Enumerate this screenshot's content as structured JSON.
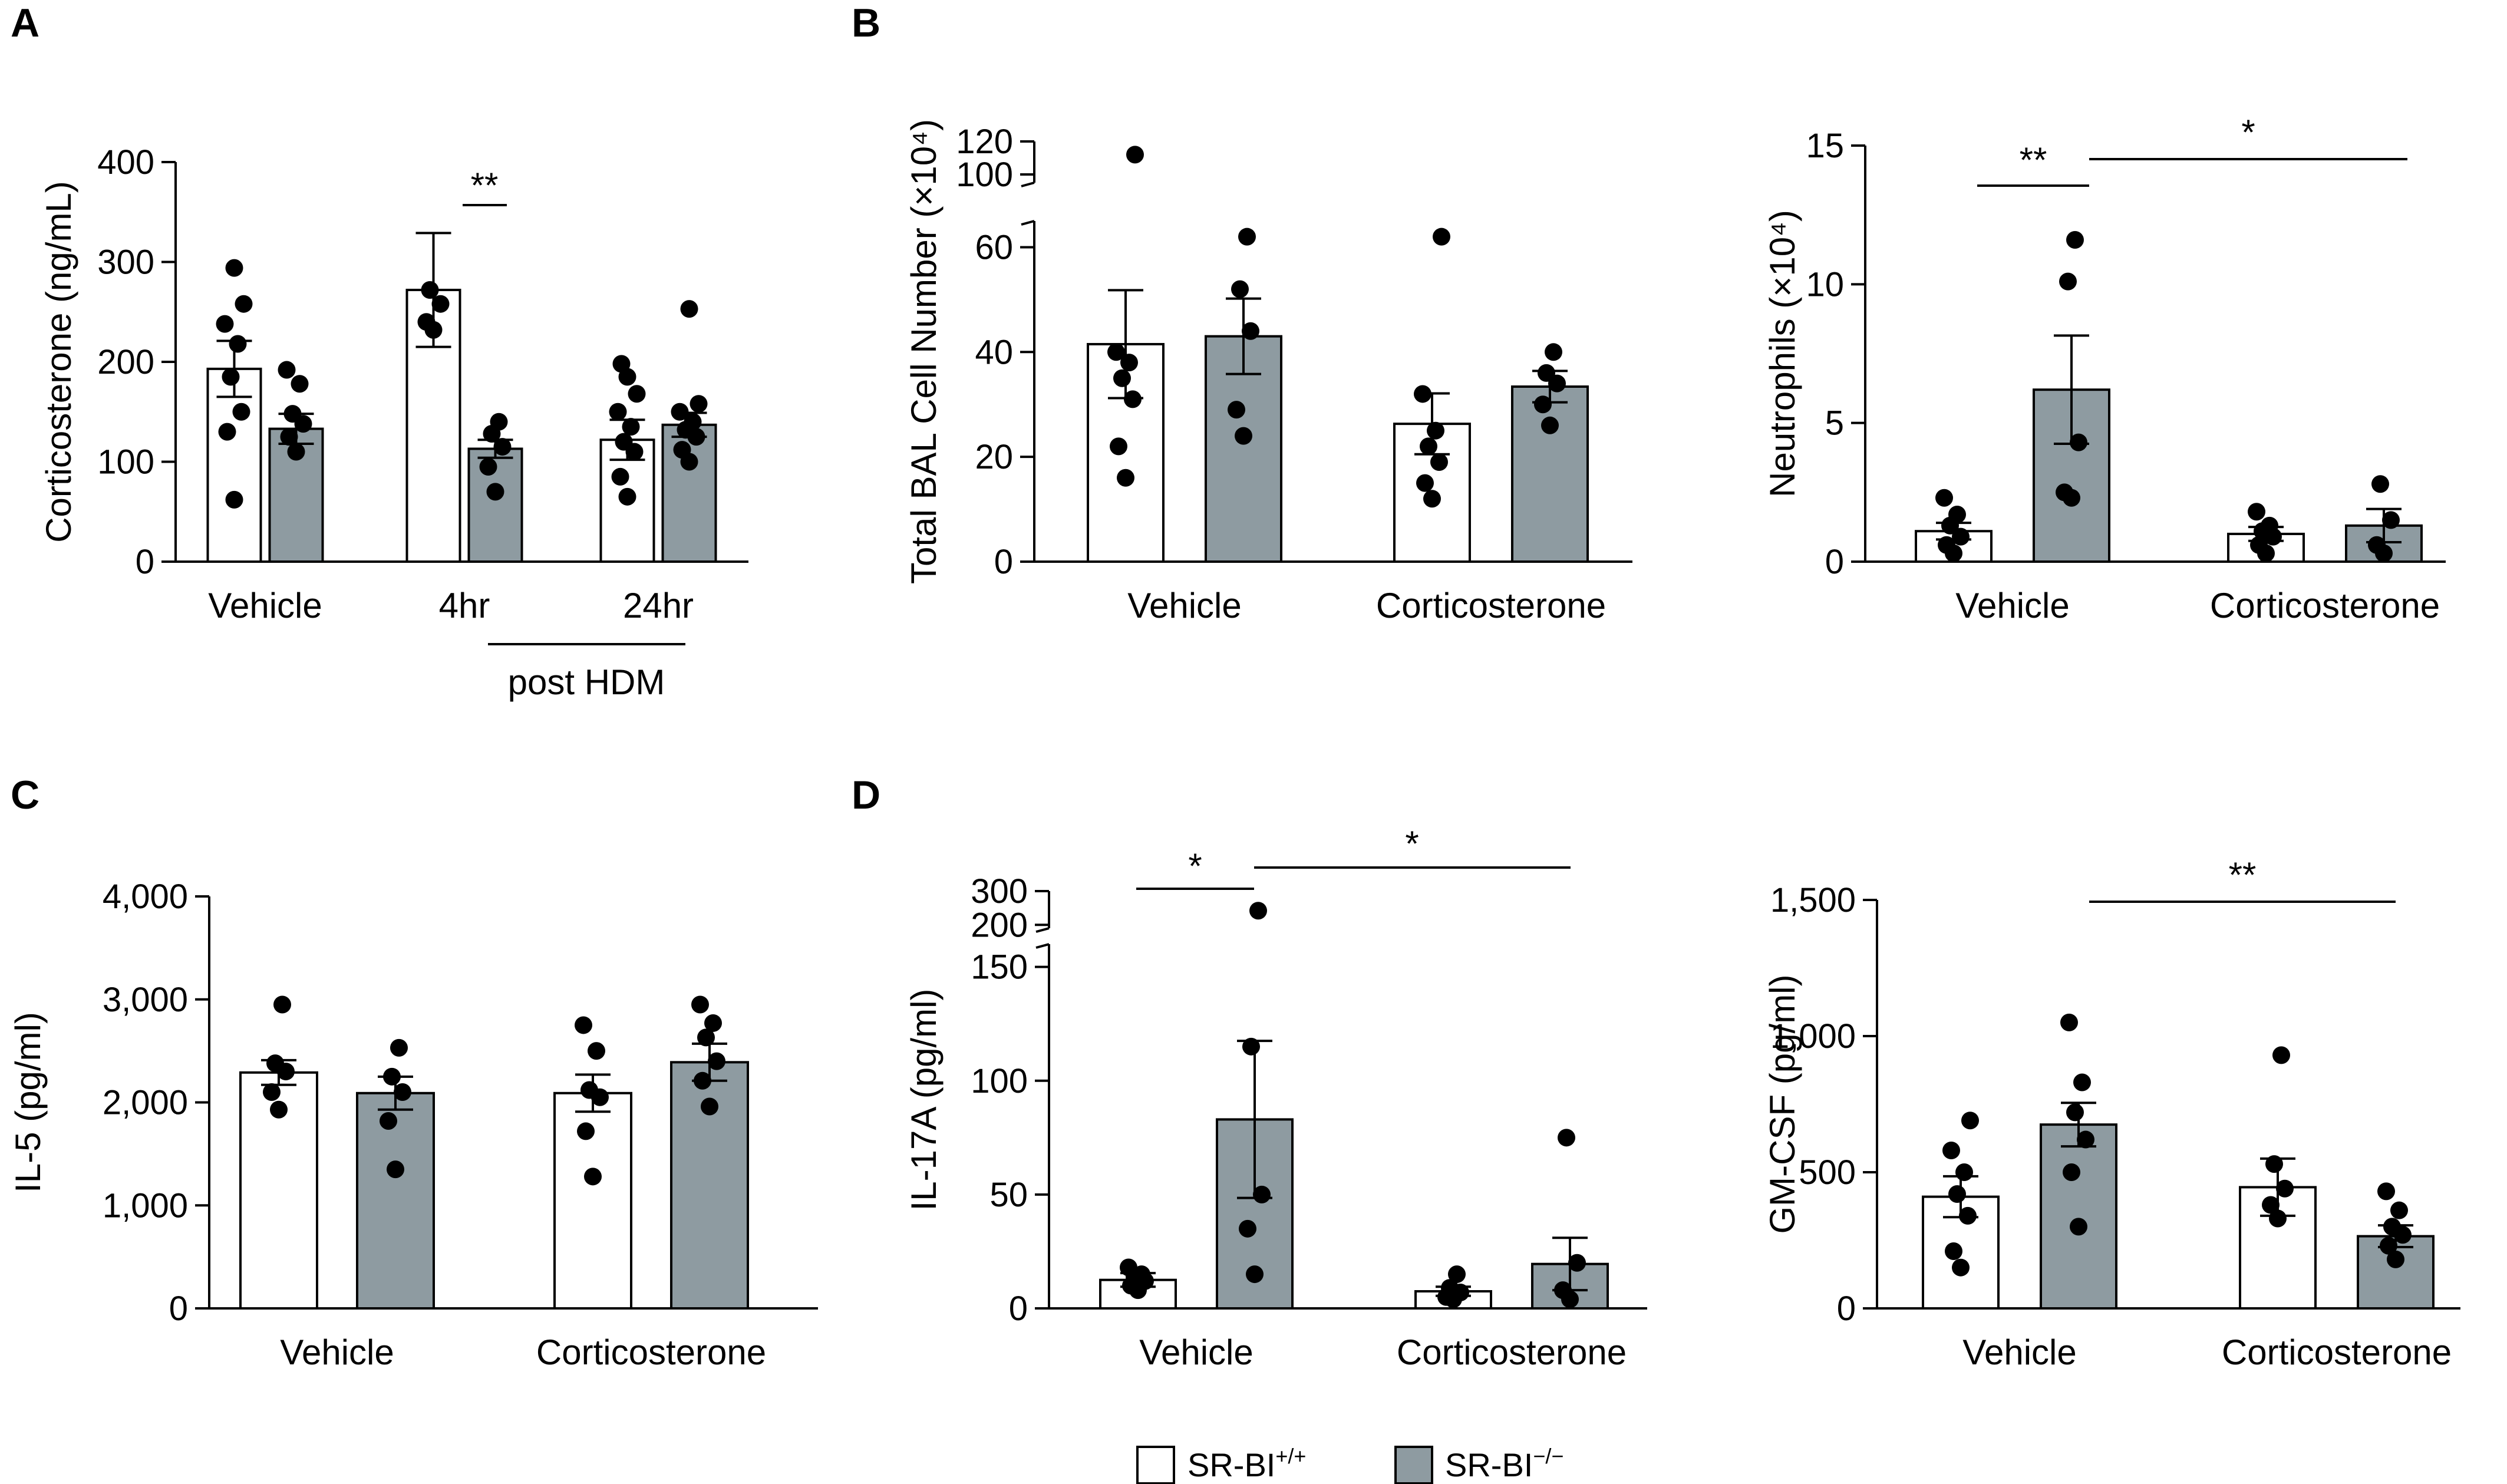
{
  "figure": {
    "panel_labels": [
      "A",
      "B",
      "C",
      "D"
    ],
    "legend": [
      {
        "base": "SR-BI",
        "sup": "+/+",
        "color": "#ffffff"
      },
      {
        "base": "SR-BI",
        "sup": "−/−",
        "color": "#8e9ba1"
      }
    ],
    "colors": {
      "wt_fill": "#ffffff",
      "ko_fill": "#8e9ba1",
      "stroke": "#000000"
    }
  },
  "chart_data": [
    {
      "type": "bar",
      "panel": "A",
      "ylabel": "Corticosterone (ng/mL)",
      "categories": [
        "Vehicle",
        "4hr",
        "24hr"
      ],
      "group_label": "post HDM",
      "ylim": [
        0,
        400
      ],
      "yticks": [
        0,
        100,
        200,
        300,
        400
      ],
      "tick_labels": [
        "0",
        "100",
        "200",
        "300",
        "400"
      ],
      "series": [
        {
          "values": [
            193,
            272,
            122
          ],
          "sem": [
            28,
            57,
            20
          ],
          "points": [
            [
              62,
              130,
              150,
              185,
              218,
              238,
              258,
              294
            ],
            [
              232,
              240,
              258,
              272
            ],
            [
              65,
              85,
              110,
              120,
              135,
              150,
              168,
              185,
              198
            ]
          ]
        },
        {
          "values": [
            133,
            113,
            137
          ],
          "sem": [
            15,
            9,
            12
          ],
          "points": [
            [
              110,
              125,
              138,
              148,
              178,
              192
            ],
            [
              70,
              95,
              115,
              128,
              140
            ],
            [
              100,
              112,
              125,
              132,
              140,
              150,
              158,
              253
            ]
          ]
        }
      ],
      "significance": [
        {
          "text": "**"
        }
      ]
    },
    {
      "type": "bar",
      "panel": "B",
      "ylabel": "Total BAL Cell Number (×10⁴)",
      "categories": [
        "Vehicle",
        "Corticosterone"
      ],
      "ylim": [
        0,
        120
      ],
      "yticks": [
        0,
        20,
        40,
        60,
        100,
        120
      ],
      "tick_labels": [
        "0",
        "20",
        "40",
        "60",
        "100",
        "120"
      ],
      "axis_break": [
        65,
        95
      ],
      "series": [
        {
          "values": [
            41.5,
            26.3
          ],
          "sem": [
            10.3,
            5.8
          ],
          "points": [
            [
              16,
              22,
              31,
              35,
              38,
              40,
              112
            ],
            [
              12,
              15,
              19,
              22,
              25,
              32,
              62
            ]
          ]
        },
        {
          "values": [
            43,
            33.4
          ],
          "sem": [
            7.2,
            3
          ],
          "points": [
            [
              24,
              29,
              44,
              52,
              62
            ],
            [
              26,
              30,
              34,
              36,
              40
            ]
          ]
        }
      ],
      "significance": []
    },
    {
      "type": "bar",
      "panel": "B",
      "ylabel": "Neutrophils (×10⁴)",
      "categories": [
        "Vehicle",
        "Corticosterone"
      ],
      "ylim": [
        0,
        15
      ],
      "yticks": [
        0,
        5,
        10,
        15
      ],
      "tick_labels": [
        "0",
        "5",
        "10",
        "15"
      ],
      "series": [
        {
          "values": [
            1.1,
            1.0
          ],
          "sem": [
            0.3,
            0.25
          ],
          "points": [
            [
              0.3,
              0.6,
              0.9,
              1.3,
              1.7,
              2.3
            ],
            [
              0.3,
              0.6,
              0.9,
              1.1,
              1.3,
              1.8
            ]
          ]
        },
        {
          "values": [
            6.2,
            1.3
          ],
          "sem": [
            1.95,
            0.6
          ],
          "points": [
            [
              2.3,
              2.5,
              4.3,
              10.1,
              11.6
            ],
            [
              0.3,
              0.6,
              1.5,
              2.8
            ]
          ]
        }
      ],
      "significance": [
        {
          "text": "**"
        },
        {
          "text": "*"
        }
      ]
    },
    {
      "type": "bar",
      "panel": "C",
      "ylabel": "IL-5 (pg/ml)",
      "categories": [
        "Vehicle",
        "Corticosterone"
      ],
      "ylim": [
        0,
        4000
      ],
      "yticks": [
        0,
        1000,
        2000,
        3000,
        4000
      ],
      "tick_labels": [
        "0",
        "1,000",
        "2,000",
        "3,000",
        "4,000"
      ],
      "series": [
        {
          "values": [
            2290,
            2090
          ],
          "sem": [
            120,
            180
          ],
          "points": [
            [
              1930,
              2100,
              2300,
              2380,
              2950
            ],
            [
              1280,
              1720,
              2050,
              2120,
              2500,
              2750
            ]
          ]
        },
        {
          "values": [
            2090,
            2390
          ],
          "sem": [
            160,
            180
          ],
          "points": [
            [
              1350,
              1820,
              2100,
              2250,
              2530
            ],
            [
              1960,
              2210,
              2400,
              2630,
              2770,
              2950
            ]
          ]
        }
      ],
      "significance": []
    },
    {
      "type": "bar",
      "panel": "D",
      "ylabel": "IL-17A (pg/ml)",
      "categories": [
        "Vehicle",
        "Corticosterone"
      ],
      "ylim": [
        0,
        300
      ],
      "yticks": [
        0,
        50,
        100,
        150,
        200,
        300
      ],
      "tick_labels": [
        "0",
        "50",
        "100",
        "150",
        "200",
        "300"
      ],
      "axis_break": [
        160,
        190
      ],
      "series": [
        {
          "values": [
            12.5,
            7.5
          ],
          "sem": [
            3,
            2
          ],
          "points": [
            [
              8,
              10,
              12,
              14,
              15,
              18
            ],
            [
              4,
              5,
              7,
              9,
              15
            ]
          ]
        },
        {
          "values": [
            83,
            19.5
          ],
          "sem": [
            34.5,
            11.5
          ],
          "points": [
            [
              15,
              35,
              50,
              115,
              242
            ],
            [
              4,
              8,
              20,
              75
            ]
          ]
        }
      ],
      "significance": [
        {
          "text": "*"
        },
        {
          "text": "*"
        }
      ]
    },
    {
      "type": "bar",
      "panel": "D",
      "ylabel": "GM-CSF (pg/ml)",
      "categories": [
        "Vehicle",
        "Corticosterone"
      ],
      "ylim": [
        0,
        1500
      ],
      "yticks": [
        0,
        500,
        1000,
        1500
      ],
      "tick_labels": [
        "0",
        "500",
        "1,000",
        "1,500"
      ],
      "series": [
        {
          "values": [
            410,
            445
          ],
          "sem": [
            75,
            105
          ],
          "points": [
            [
              150,
              210,
              340,
              420,
              500,
              580,
              690
            ],
            [
              330,
              380,
              440,
              530,
              930
            ]
          ]
        },
        {
          "values": [
            675,
            265
          ],
          "sem": [
            80,
            40
          ],
          "points": [
            [
              300,
              500,
              620,
              720,
              830,
              1050
            ],
            [
              180,
              230,
              270,
              300,
              360,
              430
            ]
          ]
        }
      ],
      "significance": [
        {
          "text": "**"
        }
      ]
    }
  ]
}
